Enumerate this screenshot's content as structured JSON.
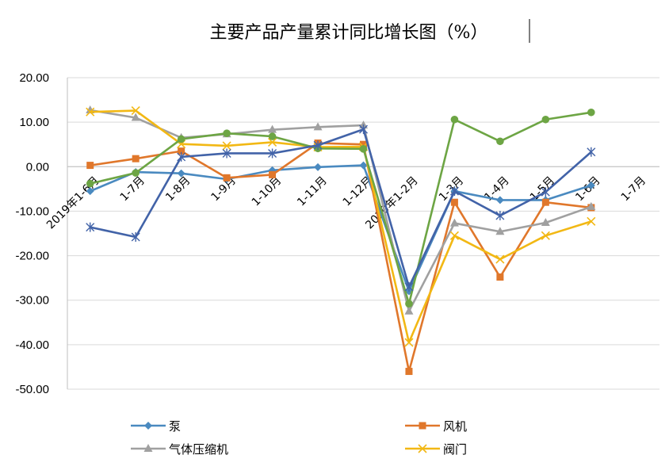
{
  "chart_data": {
    "type": "line",
    "title": "主要产品产量累计同比增长图（%）",
    "xlabel": "",
    "ylabel": "",
    "ylim": [
      -50,
      20
    ],
    "yticks": [
      "20.00",
      "10.00",
      "0.00",
      "-10.00",
      "-20.00",
      "-30.00",
      "-40.00",
      "-50.00"
    ],
    "categories": [
      "2019年1-6月",
      "1-7月",
      "1-8月",
      "1-9月",
      "1-10月",
      "1-11月",
      "1-12月",
      "2020年1-2月",
      "1-3月",
      "1-4月",
      "1-5月",
      "1-6月",
      "1-7月"
    ],
    "grid": true,
    "legend_position": "bottom",
    "series": [
      {
        "name": "泵",
        "color": "#4a8ac0",
        "marker": "diamond",
        "values": [
          -5.5,
          -1.2,
          -1.5,
          -2.8,
          -0.8,
          -0.1,
          0.3,
          -28.0,
          -5.5,
          -7.5,
          -7.5,
          -4.2,
          null
        ]
      },
      {
        "name": "风机",
        "color": "#e0772b",
        "marker": "square",
        "values": [
          0.3,
          1.8,
          3.5,
          -2.5,
          -1.8,
          5.3,
          5.0,
          -46.0,
          -8.0,
          -24.8,
          -8.0,
          -9.2,
          null
        ]
      },
      {
        "name": "气体压缩机",
        "color": "#a0a0a0",
        "marker": "triangle",
        "values": [
          12.7,
          11.0,
          6.5,
          7.3,
          8.3,
          8.9,
          9.3,
          -32.5,
          -12.7,
          -14.6,
          -12.6,
          -9.0,
          null
        ]
      },
      {
        "name": "阀门",
        "color": "#f2b814",
        "marker": "x",
        "values": [
          12.3,
          12.6,
          5.1,
          4.7,
          5.5,
          4.4,
          4.5,
          -39.5,
          -15.5,
          -20.8,
          -15.5,
          -12.3,
          null
        ]
      },
      {
        "name": "",
        "color": "#6da544",
        "marker": "circle",
        "values": [
          -3.8,
          -1.4,
          6.2,
          7.5,
          6.8,
          4.1,
          4.0,
          -30.8,
          10.6,
          5.7,
          10.6,
          12.2,
          null
        ]
      },
      {
        "name": "",
        "color": "#4263a8",
        "marker": "star",
        "values": [
          -13.6,
          -15.8,
          2.2,
          3.0,
          3.0,
          4.8,
          8.4,
          -27.0,
          -5.5,
          -11.0,
          -5.7,
          3.3,
          null
        ]
      }
    ]
  }
}
